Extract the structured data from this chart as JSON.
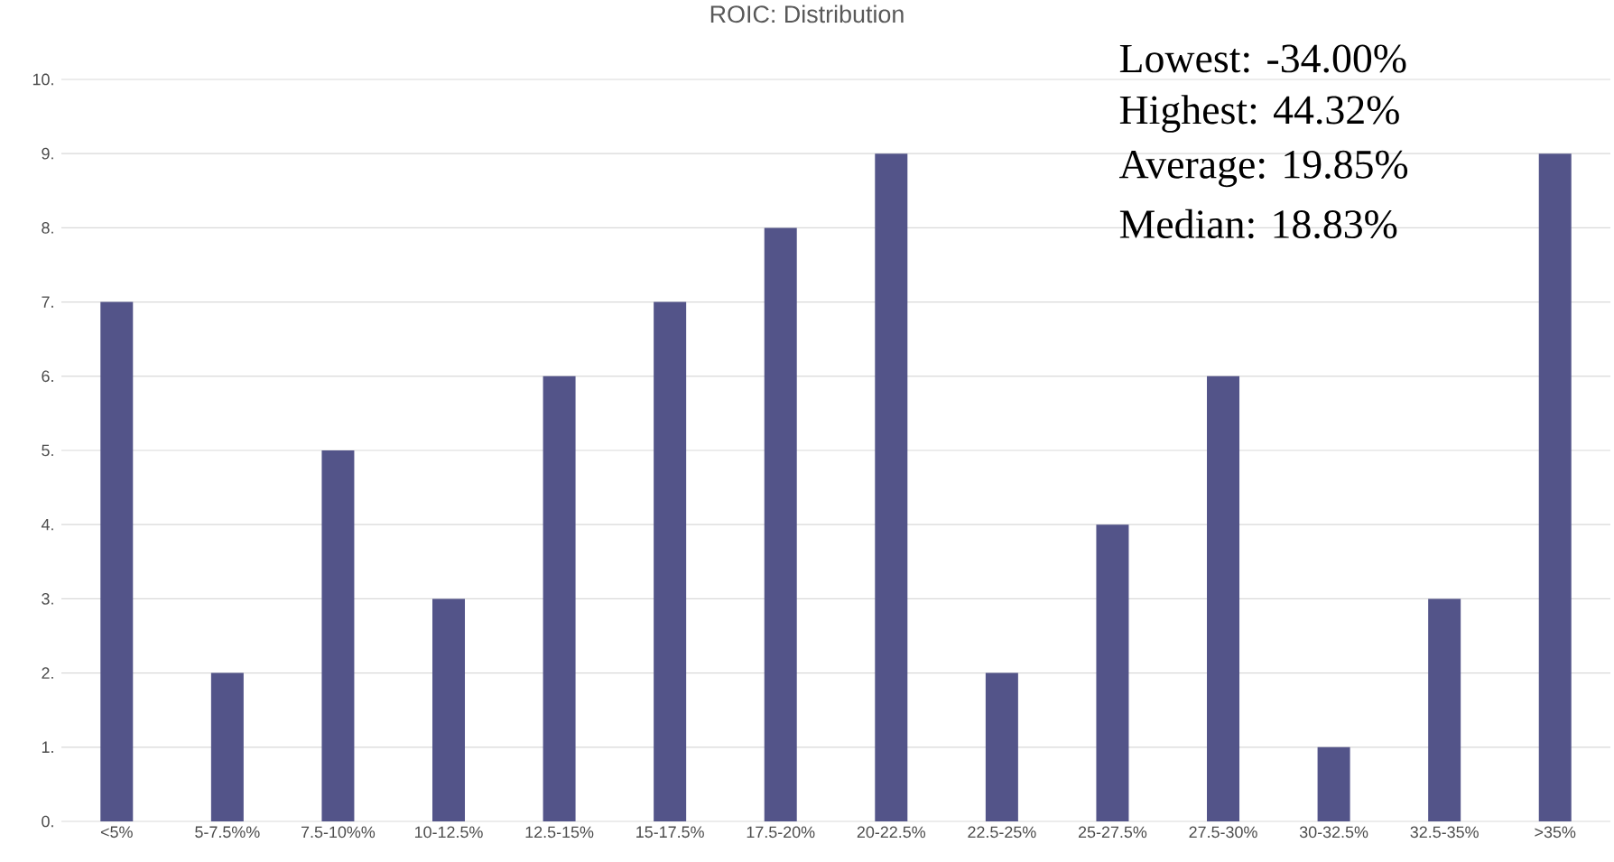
{
  "chart_data": {
    "type": "bar",
    "title": "ROIC: Distribution",
    "categories": [
      "<5%",
      "5-7.5%%",
      "7.5-10%%",
      "10-12.5%",
      "12.5-15%",
      "15-17.5%",
      "17.5-20%",
      "20-22.5%",
      "22.5-25%",
      "25-27.5%",
      "27.5-30%",
      "30-32.5%",
      "32.5-35%",
      ">35%"
    ],
    "values": [
      7,
      2,
      5,
      3,
      6,
      7,
      8,
      9,
      2,
      4,
      6,
      1,
      3,
      9
    ],
    "color": "#535489",
    "ylim": [
      0,
      10
    ],
    "yticks": [
      {
        "value": 0,
        "label": "0."
      },
      {
        "value": 1,
        "label": "1."
      },
      {
        "value": 2,
        "label": "2."
      },
      {
        "value": 3,
        "label": "3."
      },
      {
        "value": 4,
        "label": "4."
      },
      {
        "value": 5,
        "label": "5."
      },
      {
        "value": 6,
        "label": "6."
      },
      {
        "value": 7,
        "label": "7."
      },
      {
        "value": 8,
        "label": "8."
      },
      {
        "value": 9,
        "label": "9."
      },
      {
        "value": 10,
        "label": "10."
      }
    ],
    "grid": "y",
    "annotations": [
      "Lowest: -34.00%",
      "Highest: 44.32%",
      "Average: 19.85%",
      "Median: 18.83%"
    ]
  }
}
